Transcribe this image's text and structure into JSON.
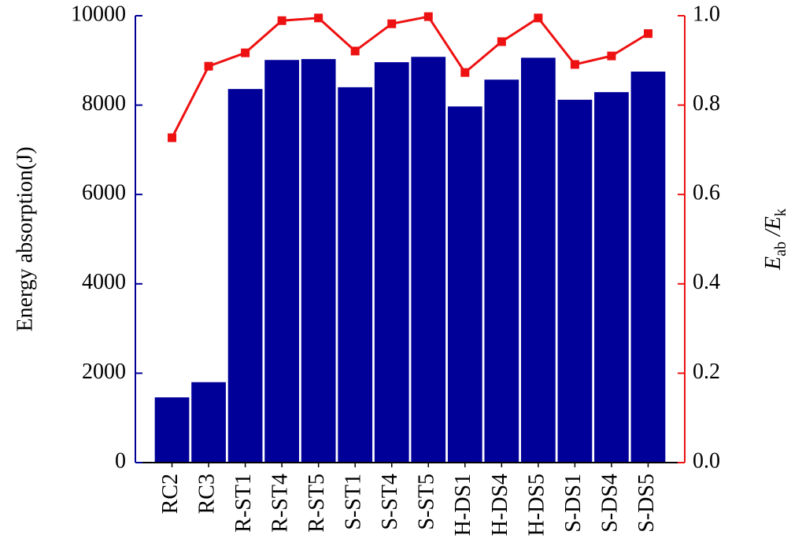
{
  "chart_data": {
    "type": "bar-line",
    "categories": [
      "RC2",
      "RC3",
      "R-ST1",
      "R-ST4",
      "R-ST5",
      "S-ST1",
      "S-ST4",
      "S-ST5",
      "H-DS1",
      "H-DS4",
      "H-DS5",
      "S-DS1",
      "S-DS4",
      "S-DS5"
    ],
    "series": [
      {
        "type": "bar",
        "axis": "y",
        "color": "#000099",
        "values": [
          1460,
          1800,
          8360,
          9010,
          9030,
          8400,
          8960,
          9080,
          7970,
          8570,
          9060,
          8120,
          8290,
          8750
        ]
      },
      {
        "type": "line",
        "axis": "y2",
        "color": "#ee1111",
        "values": [
          0.727,
          0.887,
          0.917,
          0.989,
          0.995,
          0.921,
          0.982,
          0.998,
          0.873,
          0.942,
          0.995,
          0.891,
          0.91,
          0.96
        ]
      }
    ],
    "ylabel": "Energy absorption(J)",
    "y2label": {
      "main1": "E",
      "sub1": "ab",
      "main2": " /E",
      "sub2": "k"
    },
    "ylim": [
      0,
      10000
    ],
    "yticks": [
      0,
      2000,
      4000,
      6000,
      8000,
      10000
    ],
    "y2lim": [
      0,
      1
    ],
    "y2ticks": [
      {
        "value": 0,
        "label": "0.0"
      },
      0.2,
      0.4,
      0.6,
      0.8,
      {
        "value": 1,
        "label": "1.0"
      }
    ],
    "y_axis_color": "#000099",
    "y2_axis_color": "#ee1111"
  }
}
